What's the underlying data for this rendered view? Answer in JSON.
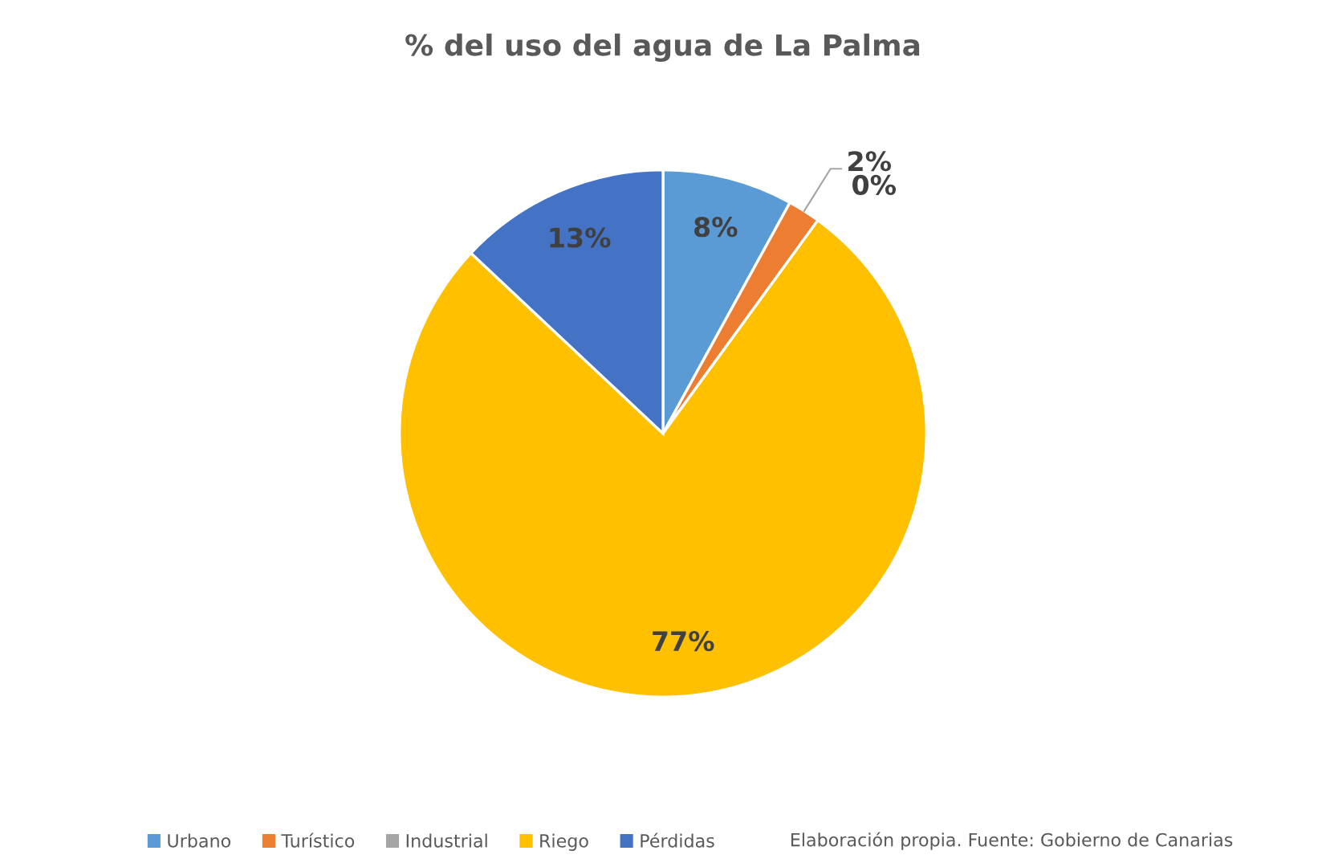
{
  "chart_data": {
    "type": "pie",
    "title": "% del uso del agua de La Palma",
    "categories": [
      "Urbano",
      "Turístico",
      "Industrial",
      "Riego",
      "Pérdidas"
    ],
    "values": [
      8,
      2,
      0,
      77,
      13
    ],
    "colors": [
      "#5b9bd5",
      "#ed7d31",
      "#a5a5a5",
      "#ffc000",
      "#4472c4"
    ],
    "value_labels": [
      "8%",
      "2%",
      "0%",
      "77%",
      "13%"
    ],
    "legend": "bottom left",
    "annotations": [
      "Elaboración propia. Fuente: Gobierno de Canarias"
    ]
  }
}
